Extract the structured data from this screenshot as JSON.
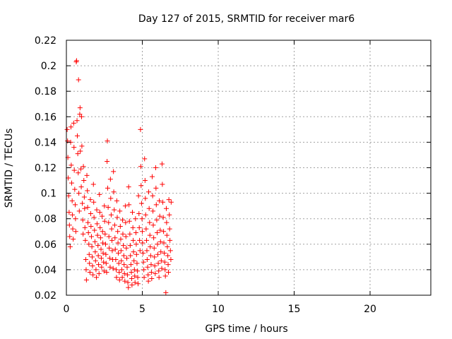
{
  "chart_data": {
    "type": "scatter",
    "title": "Day 127 of 2015, SRMTID for receiver mar6",
    "xlabel": "GPS time / hours",
    "ylabel": "SRMTID / TECUs",
    "xlim": [
      0,
      24
    ],
    "ylim": [
      0.02,
      0.22
    ],
    "x_ticks": [
      0,
      5,
      10,
      15,
      20
    ],
    "x_tick_labels": [
      "0",
      "5",
      "10",
      "15",
      "20"
    ],
    "y_ticks": [
      0.02,
      0.04,
      0.06,
      0.08,
      0.1,
      0.12,
      0.14,
      0.16,
      0.18,
      0.2,
      0.22
    ],
    "y_tick_labels": [
      "0.02",
      "0.04",
      "0.06",
      "0.08",
      "0.1",
      "0.12",
      "0.14",
      "0.16",
      "0.18",
      "0.2",
      "0.22"
    ],
    "grid": true,
    "legend": false,
    "marker": "plus",
    "color": "#ff0000",
    "series": [
      {
        "points": [
          [
            0.05,
            0.15
          ],
          [
            0.08,
            0.141
          ],
          [
            0.1,
            0.128
          ],
          [
            0.12,
            0.112
          ],
          [
            0.15,
            0.098
          ],
          [
            0.18,
            0.085
          ],
          [
            0.2,
            0.075
          ],
          [
            0.22,
            0.066
          ],
          [
            0.25,
            0.058
          ],
          [
            0.28,
            0.14
          ],
          [
            0.3,
            0.152
          ],
          [
            0.32,
            0.122
          ],
          [
            0.35,
            0.108
          ],
          [
            0.38,
            0.094
          ],
          [
            0.4,
            0.083
          ],
          [
            0.42,
            0.072
          ],
          [
            0.45,
            0.064
          ],
          [
            0.48,
            0.155
          ],
          [
            0.5,
            0.136
          ],
          [
            0.52,
            0.118
          ],
          [
            0.55,
            0.103
          ],
          [
            0.58,
            0.091
          ],
          [
            0.6,
            0.08
          ],
          [
            0.62,
            0.07
          ],
          [
            0.65,
            0.203
          ],
          [
            0.67,
            0.204
          ],
          [
            0.7,
            0.157
          ],
          [
            0.72,
            0.145
          ],
          [
            0.75,
            0.131
          ],
          [
            0.78,
            0.116
          ],
          [
            0.8,
            0.189
          ],
          [
            0.82,
            0.1
          ],
          [
            0.85,
            0.086
          ],
          [
            0.88,
            0.162
          ],
          [
            0.9,
            0.167
          ],
          [
            0.92,
            0.133
          ],
          [
            0.95,
            0.119
          ],
          [
            0.98,
            0.105
          ],
          [
            1.0,
            0.16
          ],
          [
            1.02,
            0.137
          ],
          [
            1.05,
            0.092
          ],
          [
            1.08,
            0.079
          ],
          [
            1.1,
            0.068
          ],
          [
            1.12,
            0.121
          ],
          [
            1.15,
            0.11
          ],
          [
            1.18,
            0.097
          ],
          [
            1.2,
            0.088
          ],
          [
            1.22,
            0.073
          ],
          [
            1.25,
            0.063
          ],
          [
            1.28,
            0.048
          ],
          [
            1.3,
            0.04
          ],
          [
            1.32,
            0.032
          ],
          [
            1.35,
            0.114
          ],
          [
            1.38,
            0.102
          ],
          [
            1.4,
            0.089
          ],
          [
            1.42,
            0.077
          ],
          [
            1.45,
            0.069
          ],
          [
            1.48,
            0.06
          ],
          [
            1.5,
            0.052
          ],
          [
            1.52,
            0.045
          ],
          [
            1.55,
            0.038
          ],
          [
            1.58,
            0.095
          ],
          [
            1.6,
            0.084
          ],
          [
            1.62,
            0.074
          ],
          [
            1.65,
            0.066
          ],
          [
            1.68,
            0.058
          ],
          [
            1.7,
            0.05
          ],
          [
            1.72,
            0.043
          ],
          [
            1.75,
            0.036
          ],
          [
            1.78,
            0.107
          ],
          [
            1.8,
            0.093
          ],
          [
            1.82,
            0.081
          ],
          [
            1.85,
            0.071
          ],
          [
            1.88,
            0.062
          ],
          [
            1.9,
            0.054
          ],
          [
            1.92,
            0.047
          ],
          [
            1.95,
            0.04
          ],
          [
            1.98,
            0.034
          ],
          [
            2.0,
            0.087
          ],
          [
            2.02,
            0.076
          ],
          [
            2.05,
            0.067
          ],
          [
            2.08,
            0.059
          ],
          [
            2.1,
            0.051
          ],
          [
            2.12,
            0.044
          ],
          [
            2.15,
            0.037
          ],
          [
            2.18,
            0.099
          ],
          [
            2.2,
            0.085
          ],
          [
            2.22,
            0.073
          ],
          [
            2.25,
            0.065
          ],
          [
            2.28,
            0.056
          ],
          [
            2.3,
            0.049
          ],
          [
            2.32,
            0.042
          ],
          [
            2.35,
            0.082
          ],
          [
            2.38,
            0.07
          ],
          [
            2.4,
            0.061
          ],
          [
            2.42,
            0.053
          ],
          [
            2.45,
            0.046
          ],
          [
            2.48,
            0.039
          ],
          [
            2.5,
            0.09
          ],
          [
            2.52,
            0.078
          ],
          [
            2.55,
            0.068
          ],
          [
            2.58,
            0.06
          ],
          [
            2.6,
            0.052
          ],
          [
            2.62,
            0.045
          ],
          [
            2.65,
            0.038
          ],
          [
            2.68,
            0.125
          ],
          [
            2.7,
            0.141
          ],
          [
            2.72,
            0.104
          ],
          [
            2.75,
            0.089
          ],
          [
            2.78,
            0.077
          ],
          [
            2.8,
            0.066
          ],
          [
            2.82,
            0.057
          ],
          [
            2.85,
            0.049
          ],
          [
            2.88,
            0.042
          ],
          [
            2.9,
            0.111
          ],
          [
            2.92,
            0.096
          ],
          [
            2.95,
            0.083
          ],
          [
            2.98,
            0.072
          ],
          [
            3.0,
            0.063
          ],
          [
            3.02,
            0.055
          ],
          [
            3.05,
            0.048
          ],
          [
            3.08,
            0.041
          ],
          [
            3.1,
            0.117
          ],
          [
            3.12,
            0.101
          ],
          [
            3.15,
            0.087
          ],
          [
            3.18,
            0.075
          ],
          [
            3.2,
            0.065
          ],
          [
            3.22,
            0.056
          ],
          [
            3.25,
            0.048
          ],
          [
            3.28,
            0.04
          ],
          [
            3.3,
            0.034
          ],
          [
            3.32,
            0.094
          ],
          [
            3.35,
            0.081
          ],
          [
            3.38,
            0.07
          ],
          [
            3.4,
            0.061
          ],
          [
            3.42,
            0.053
          ],
          [
            3.45,
            0.045
          ],
          [
            3.48,
            0.038
          ],
          [
            3.5,
            0.032
          ],
          [
            3.52,
            0.086
          ],
          [
            3.55,
            0.074
          ],
          [
            3.58,
            0.064
          ],
          [
            3.6,
            0.055
          ],
          [
            3.62,
            0.047
          ],
          [
            3.65,
            0.04
          ],
          [
            3.68,
            0.034
          ],
          [
            3.7,
            0.079
          ],
          [
            3.72,
            0.068
          ],
          [
            3.75,
            0.059
          ],
          [
            3.78,
            0.051
          ],
          [
            3.8,
            0.044
          ],
          [
            3.82,
            0.037
          ],
          [
            3.85,
            0.031
          ],
          [
            3.88,
            0.09
          ],
          [
            3.9,
            0.077
          ],
          [
            3.92,
            0.066
          ],
          [
            3.95,
            0.057
          ],
          [
            3.98,
            0.049
          ],
          [
            4.0,
            0.042
          ],
          [
            4.02,
            0.036
          ],
          [
            4.05,
            0.03
          ],
          [
            4.08,
            0.026
          ],
          [
            4.1,
            0.105
          ],
          [
            4.12,
            0.091
          ],
          [
            4.15,
            0.078
          ],
          [
            4.18,
            0.068
          ],
          [
            4.2,
            0.059
          ],
          [
            4.22,
            0.051
          ],
          [
            4.25,
            0.044
          ],
          [
            4.28,
            0.038
          ],
          [
            4.3,
            0.033
          ],
          [
            4.32,
            0.028
          ],
          [
            4.35,
            0.085
          ],
          [
            4.38,
            0.073
          ],
          [
            4.4,
            0.063
          ],
          [
            4.42,
            0.054
          ],
          [
            4.45,
            0.047
          ],
          [
            4.48,
            0.04
          ],
          [
            4.5,
            0.035
          ],
          [
            4.52,
            0.03
          ],
          [
            4.55,
            0.08
          ],
          [
            4.58,
            0.069
          ],
          [
            4.6,
            0.06
          ],
          [
            4.62,
            0.052
          ],
          [
            4.65,
            0.045
          ],
          [
            4.68,
            0.039
          ],
          [
            4.7,
            0.034
          ],
          [
            4.72,
            0.029
          ],
          [
            4.75,
            0.098
          ],
          [
            4.78,
            0.084
          ],
          [
            4.8,
            0.073
          ],
          [
            4.82,
            0.063
          ],
          [
            4.85,
            0.055
          ],
          [
            4.88,
            0.15
          ],
          [
            4.9,
            0.121
          ],
          [
            4.92,
            0.106
          ],
          [
            4.95,
            0.092
          ],
          [
            4.98,
            0.08
          ],
          [
            5.0,
            0.07
          ],
          [
            5.02,
            0.061
          ],
          [
            5.05,
            0.053
          ],
          [
            5.08,
            0.046
          ],
          [
            5.1,
            0.04
          ],
          [
            5.12,
            0.034
          ],
          [
            5.15,
            0.127
          ],
          [
            5.18,
            0.11
          ],
          [
            5.2,
            0.096
          ],
          [
            5.22,
            0.083
          ],
          [
            5.25,
            0.072
          ],
          [
            5.28,
            0.063
          ],
          [
            5.3,
            0.055
          ],
          [
            5.32,
            0.048
          ],
          [
            5.35,
            0.042
          ],
          [
            5.38,
            0.036
          ],
          [
            5.4,
            0.031
          ],
          [
            5.42,
            0.101
          ],
          [
            5.45,
            0.088
          ],
          [
            5.48,
            0.077
          ],
          [
            5.5,
            0.067
          ],
          [
            5.52,
            0.058
          ],
          [
            5.55,
            0.051
          ],
          [
            5.58,
            0.044
          ],
          [
            5.6,
            0.038
          ],
          [
            5.62,
            0.033
          ],
          [
            5.65,
            0.113
          ],
          [
            5.68,
            0.098
          ],
          [
            5.7,
            0.086
          ],
          [
            5.72,
            0.075
          ],
          [
            5.75,
            0.065
          ],
          [
            5.78,
            0.057
          ],
          [
            5.8,
            0.05
          ],
          [
            5.82,
            0.043
          ],
          [
            5.85,
            0.037
          ],
          [
            5.88,
            0.12
          ],
          [
            5.9,
            0.104
          ],
          [
            5.92,
            0.091
          ],
          [
            5.95,
            0.079
          ],
          [
            5.98,
            0.069
          ],
          [
            6.0,
            0.06
          ],
          [
            6.02,
            0.052
          ],
          [
            6.05,
            0.045
          ],
          [
            6.08,
            0.039
          ],
          [
            6.1,
            0.034
          ],
          [
            6.12,
            0.094
          ],
          [
            6.15,
            0.082
          ],
          [
            6.18,
            0.071
          ],
          [
            6.2,
            0.062
          ],
          [
            6.22,
            0.054
          ],
          [
            6.25,
            0.047
          ],
          [
            6.28,
            0.041
          ],
          [
            6.3,
            0.123
          ],
          [
            6.32,
            0.107
          ],
          [
            6.35,
            0.093
          ],
          [
            6.38,
            0.081
          ],
          [
            6.4,
            0.07
          ],
          [
            6.42,
            0.061
          ],
          [
            6.45,
            0.053
          ],
          [
            6.48,
            0.046
          ],
          [
            6.5,
            0.04
          ],
          [
            6.52,
            0.035
          ],
          [
            6.55,
            0.022
          ],
          [
            6.58,
            0.088
          ],
          [
            6.6,
            0.077
          ],
          [
            6.62,
            0.067
          ],
          [
            6.65,
            0.058
          ],
          [
            6.68,
            0.051
          ],
          [
            6.7,
            0.044
          ],
          [
            6.72,
            0.038
          ],
          [
            6.75,
            0.095
          ],
          [
            6.78,
            0.083
          ],
          [
            6.8,
            0.072
          ],
          [
            6.82,
            0.063
          ],
          [
            6.85,
            0.055
          ],
          [
            6.88,
            0.048
          ],
          [
            6.9,
            0.093
          ]
        ]
      }
    ]
  }
}
